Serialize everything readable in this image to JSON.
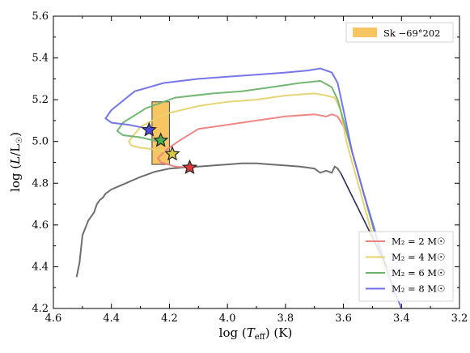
{
  "chart_data": {
    "type": "line",
    "xlabel": "log (T_eff) (K)",
    "ylabel": "log (L/L☉)",
    "xlim": [
      4.6,
      3.2
    ],
    "ylim": [
      4.2,
      5.6
    ],
    "x_reversed": true,
    "grid": false,
    "xticks": [
      "4.6",
      "4.4",
      "4.2",
      "4.0",
      "3.8",
      "3.6",
      "3.4",
      "3.2"
    ],
    "yticks": [
      "4.2",
      "4.4",
      "4.6",
      "4.8",
      "5.0",
      "5.2",
      "5.4",
      "5.6"
    ],
    "region": {
      "name": "Sk −69°202",
      "x": [
        4.26,
        4.2
      ],
      "y": [
        4.89,
        5.19
      ],
      "color": "#f6b73c"
    },
    "primary_track": {
      "color": "#6e6e6e",
      "x": [
        4.52,
        4.51,
        4.5,
        4.48,
        4.46,
        4.45,
        4.44,
        4.43,
        4.42,
        4.4,
        4.35,
        4.3,
        4.25,
        4.2,
        4.15,
        4.1,
        4.05,
        4.0,
        3.95,
        3.9,
        3.85,
        3.8,
        3.75,
        3.7,
        3.68,
        3.66,
        3.64,
        3.63,
        3.62,
        3.61
      ],
      "y": [
        4.35,
        4.42,
        4.55,
        4.62,
        4.66,
        4.7,
        4.72,
        4.73,
        4.75,
        4.77,
        4.8,
        4.83,
        4.855,
        4.87,
        4.875,
        4.88,
        4.885,
        4.89,
        4.895,
        4.895,
        4.89,
        4.885,
        4.88,
        4.87,
        4.85,
        4.86,
        4.85,
        4.88,
        4.87,
        4.85
      ]
    },
    "series": [
      {
        "name": "M₂ = 2 M☉",
        "color": "#f08080",
        "x": [
          4.13,
          4.18,
          4.23,
          4.24,
          4.21,
          4.17,
          4.1,
          4.0,
          3.9,
          3.8,
          3.7,
          3.66,
          3.64,
          3.62,
          3.59,
          3.57,
          3.55,
          3.52,
          3.48,
          3.44
        ],
        "y": [
          4.875,
          4.88,
          4.9,
          4.92,
          4.96,
          5.0,
          5.06,
          5.08,
          5.1,
          5.12,
          5.13,
          5.12,
          5.13,
          5.12,
          5.05,
          4.95,
          4.85,
          4.7,
          4.5,
          4.35
        ]
      },
      {
        "name": "M₂ = 4 M☉",
        "color": "#e6d36e",
        "x": [
          4.19,
          4.24,
          4.3,
          4.33,
          4.34,
          4.3,
          4.22,
          4.1,
          4.0,
          3.9,
          3.8,
          3.7,
          3.66,
          3.63,
          3.61,
          3.59,
          3.57,
          3.54,
          3.5,
          3.45
        ],
        "y": [
          4.94,
          4.96,
          4.97,
          4.98,
          5.0,
          5.07,
          5.13,
          5.17,
          5.19,
          5.2,
          5.22,
          5.23,
          5.22,
          5.21,
          5.15,
          5.0,
          4.9,
          4.75,
          4.55,
          4.35
        ]
      },
      {
        "name": "M₂ = 6 M☉",
        "color": "#6db36d",
        "x": [
          4.24,
          4.3,
          4.36,
          4.38,
          4.36,
          4.28,
          4.18,
          4.05,
          3.95,
          3.85,
          3.75,
          3.68,
          3.64,
          3.62,
          3.6,
          3.58,
          3.55,
          3.52,
          3.48,
          3.43
        ],
        "y": [
          5.0,
          5.02,
          5.03,
          5.05,
          5.09,
          5.16,
          5.21,
          5.23,
          5.24,
          5.26,
          5.28,
          5.29,
          5.26,
          5.2,
          5.1,
          5.0,
          4.85,
          4.7,
          4.5,
          4.3
        ]
      },
      {
        "name": "M₂ = 8 M☉",
        "color": "#6f6fe8",
        "x": [
          4.27,
          4.34,
          4.4,
          4.42,
          4.4,
          4.32,
          4.22,
          4.1,
          4.0,
          3.9,
          3.8,
          3.72,
          3.68,
          3.64,
          3.62,
          3.6,
          3.57,
          3.53,
          3.48,
          3.43,
          3.4
        ],
        "y": [
          5.06,
          5.08,
          5.09,
          5.11,
          5.15,
          5.24,
          5.28,
          5.3,
          5.31,
          5.32,
          5.33,
          5.34,
          5.35,
          5.33,
          5.28,
          5.15,
          4.95,
          4.75,
          4.52,
          4.3,
          4.2
        ]
      }
    ],
    "stars": [
      {
        "x": 4.27,
        "y": 5.055,
        "color": "#4b4bdb"
      },
      {
        "x": 4.23,
        "y": 5.005,
        "color": "#4caf50"
      },
      {
        "x": 4.19,
        "y": 4.94,
        "color": "#d8c84a"
      },
      {
        "x": 4.13,
        "y": 4.875,
        "color": "#e03a3a"
      }
    ],
    "legend_placement": "bottom-right"
  }
}
